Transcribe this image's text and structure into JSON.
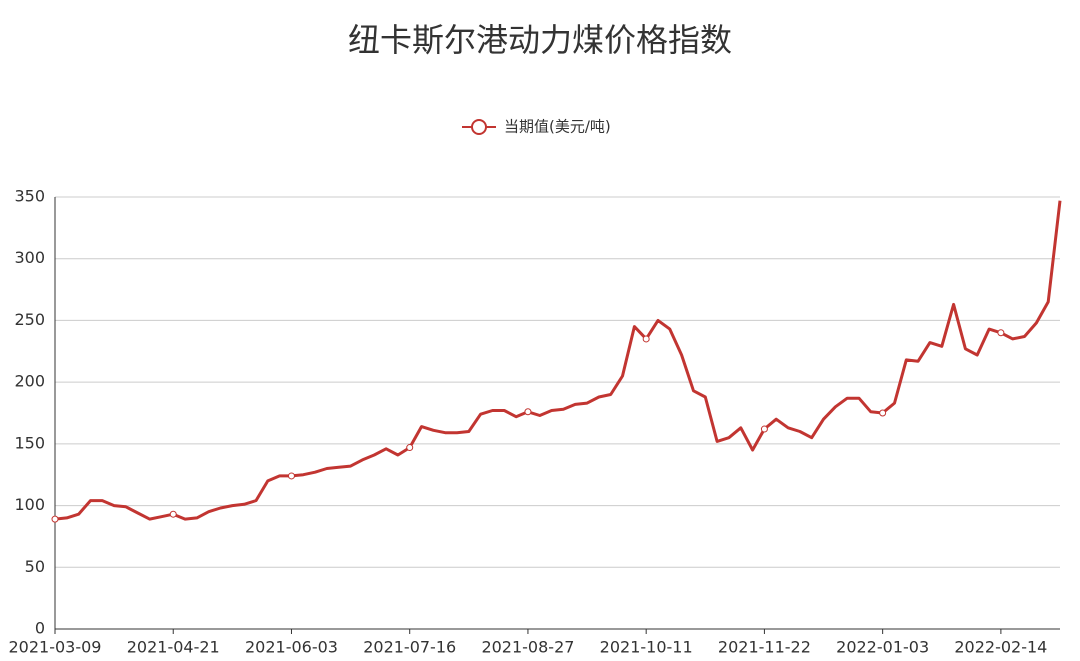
{
  "chart_data": {
    "type": "line",
    "title": "纽卡斯尔港动力煤价格指数",
    "categories": [
      "2021-03-09",
      null,
      null,
      null,
      null,
      null,
      null,
      null,
      null,
      null,
      "2021-04-21",
      null,
      null,
      null,
      null,
      null,
      null,
      null,
      null,
      null,
      "2021-06-03",
      null,
      null,
      null,
      null,
      null,
      null,
      null,
      null,
      null,
      "2021-07-16",
      null,
      null,
      null,
      null,
      null,
      null,
      null,
      null,
      null,
      "2021-08-27",
      null,
      null,
      null,
      null,
      null,
      null,
      null,
      null,
      null,
      "2021-10-11",
      null,
      null,
      null,
      null,
      null,
      null,
      null,
      null,
      null,
      "2021-11-22",
      null,
      null,
      null,
      null,
      null,
      null,
      null,
      null,
      null,
      "2022-01-03",
      null,
      null,
      null,
      null,
      null,
      null,
      null,
      null,
      null,
      "2022-02-14",
      null,
      null,
      null,
      null,
      null
    ],
    "series": [
      {
        "name": "当期值(美元/吨)",
        "color": "#c23531",
        "values": [
          89,
          90,
          93,
          104,
          104,
          100,
          99,
          94,
          89,
          91,
          93,
          89,
          90,
          95,
          98,
          100,
          101,
          104,
          120,
          124,
          124,
          125,
          127,
          130,
          131,
          132,
          137,
          141,
          146,
          141,
          147,
          164,
          161,
          159,
          159,
          160,
          174,
          177,
          177,
          172,
          176,
          173,
          177,
          178,
          182,
          183,
          188,
          190,
          205,
          245,
          235,
          250,
          243,
          222,
          193,
          188,
          152,
          155,
          163,
          145,
          162,
          170,
          163,
          160,
          155,
          170,
          180,
          187,
          187,
          176,
          175,
          183,
          218,
          217,
          232,
          229,
          263,
          227,
          222,
          243,
          240,
          235,
          237,
          248,
          265,
          347
        ]
      }
    ],
    "ylim": [
      0,
      350
    ],
    "yticks": [
      0,
      50,
      100,
      150,
      200,
      250,
      300,
      350
    ],
    "grid": true
  }
}
